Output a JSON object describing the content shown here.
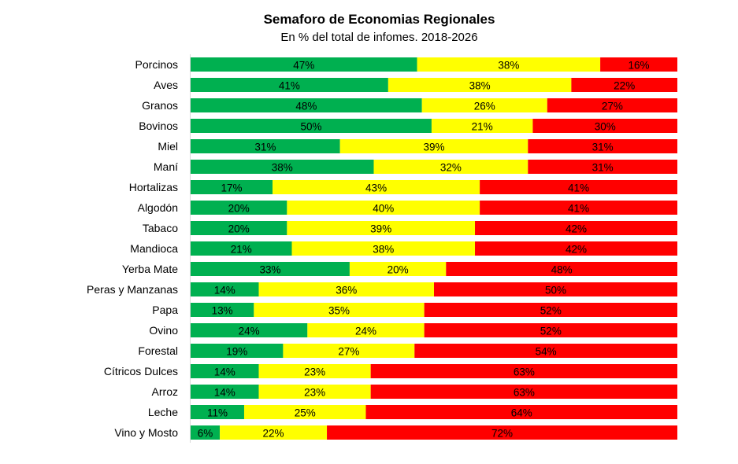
{
  "chart_data": {
    "type": "bar",
    "orientation": "horizontal",
    "stacked": true,
    "percent_stacked": true,
    "title": "Semaforo de Economias Regionales",
    "subtitle": "En % del total de infomes. 2018-2026",
    "xlabel": "",
    "ylabel": "",
    "xlim": [
      0,
      100
    ],
    "grid": false,
    "legend": "none",
    "categories": [
      "Porcinos",
      "Aves",
      "Granos",
      "Bovinos",
      "Miel",
      "Maní",
      "Hortalizas",
      "Algodón",
      "Tabaco",
      "Mandioca",
      "Yerba Mate",
      "Peras y Manzanas",
      "Papa",
      "Ovino",
      "Forestal",
      "Cítricos Dulces",
      "Arroz",
      "Leche",
      "Vino y Mosto"
    ],
    "series": [
      {
        "color": "#00B050",
        "values": [
          47,
          41,
          48,
          50,
          31,
          38,
          17,
          20,
          20,
          21,
          33,
          14,
          13,
          24,
          19,
          14,
          14,
          11,
          6
        ]
      },
      {
        "color": "#FFFF00",
        "values": [
          38,
          38,
          26,
          21,
          39,
          32,
          43,
          40,
          39,
          38,
          20,
          36,
          35,
          24,
          27,
          23,
          23,
          25,
          22
        ]
      },
      {
        "color": "#FF0000",
        "values": [
          16,
          22,
          27,
          30,
          31,
          31,
          41,
          41,
          42,
          42,
          48,
          50,
          52,
          52,
          54,
          63,
          63,
          64,
          72
        ]
      }
    ]
  }
}
